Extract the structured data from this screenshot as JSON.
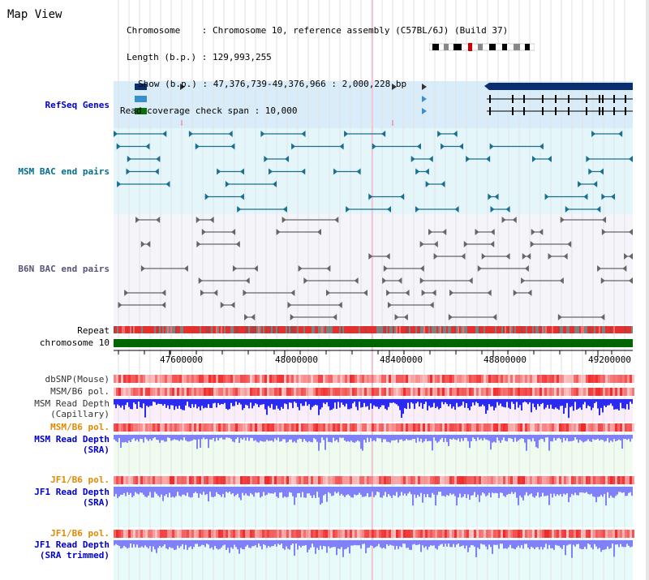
{
  "title": "Map View",
  "info": {
    "chromosome_line": "Chromosome    : Chromosome 10, reference assembly (C57BL/6J) (Build 37)",
    "length_line": "Length (b.p.) : 129,993,255",
    "show_line": "Show (b.p.) : 47,376,739-49,376,966 : 2,000,228 bp",
    "span_line": "Read coverage check span : 10,000"
  },
  "tracks": {
    "refseq": "RefSeq Genes",
    "msm_bac": "MSM BAC end pairs",
    "b6n_bac": "B6N BAC end pairs",
    "repeat": "Repeat",
    "chromosome": "chromosome 10",
    "dbsnp": "dbSNP(Mouse)",
    "msm_b6_pol_1": "MSM/B6 pol.",
    "msm_depth_cap_1": "MSM Read Depth",
    "msm_depth_cap_2": "(Capillary)",
    "msm_b6_pol_2": "MSM/B6 pol.",
    "msm_depth_sra_1": "MSM Read Depth",
    "msm_depth_sra_2": "(SRA)",
    "jf1_pol_1": "JF1/B6 pol.",
    "jf1_depth_sra_1": "JF1 Read Depth",
    "jf1_depth_sra_2": "(SRA)",
    "jf1_pol_2": "JF1/B6 pol.",
    "jf1_depth_trim_1": "JF1 Read Depth",
    "jf1_depth_trim_2": "(SRA trimmed)"
  },
  "axis_ticks": [
    "47600000",
    "48000000",
    "48400000",
    "48800000",
    "49200000"
  ],
  "colors": {
    "refseq_bg": "#d8ecfa",
    "bac_msm_bg": "#e4f6fa",
    "bac_b6n_bg": "#f4f4fa",
    "chrom_green": "#006600",
    "depth_blue": "#2a2af0",
    "depth_light": "#8080f8",
    "pol_red": "#f04040"
  }
}
